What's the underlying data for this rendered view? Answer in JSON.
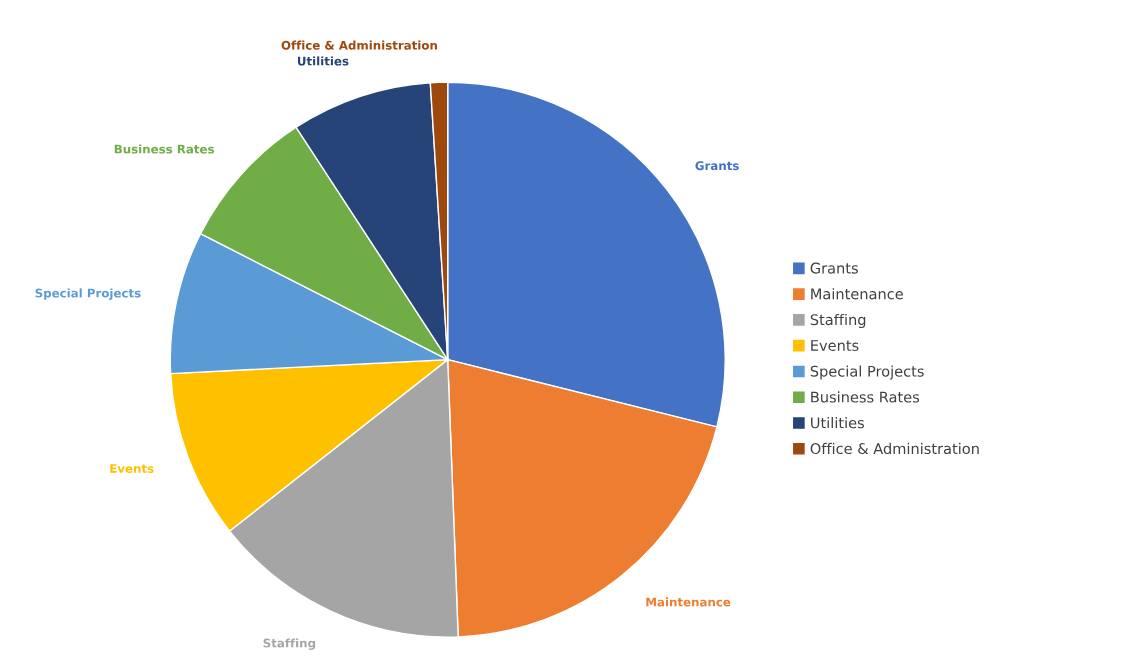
{
  "chart_data": {
    "type": "pie",
    "categories": [
      "Grants",
      "Maintenance",
      "Staffing",
      "Events",
      "Special Projects",
      "Business Rates",
      "Utilities",
      "Office & Administration"
    ],
    "values": [
      28.9,
      20.5,
      15,
      9.8,
      8.3,
      8.3,
      8.2,
      1
    ],
    "colors": [
      "#4472c4",
      "#ed7d31",
      "#a5a5a5",
      "#ffc000",
      "#5b9bd5",
      "#70ad47",
      "#264478",
      "#9e480e"
    ],
    "legend": "right"
  }
}
